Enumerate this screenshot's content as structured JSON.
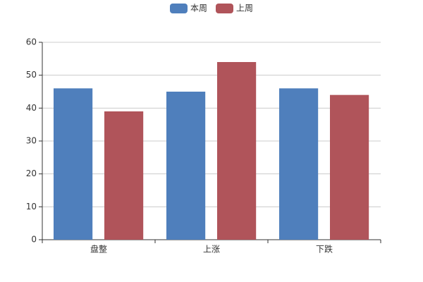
{
  "chart_data": {
    "type": "bar",
    "categories": [
      "盘整",
      "上涨",
      "下跌"
    ],
    "series": [
      {
        "name": "本周",
        "color": "#4f7fbc",
        "values": [
          46,
          45,
          46
        ]
      },
      {
        "name": "上周",
        "color": "#b0545a",
        "values": [
          39,
          54,
          44
        ]
      }
    ],
    "ylim": [
      0,
      60
    ],
    "yticks": [
      0,
      10,
      20,
      30,
      40,
      50,
      60
    ],
    "grid": true,
    "legend": "top"
  }
}
